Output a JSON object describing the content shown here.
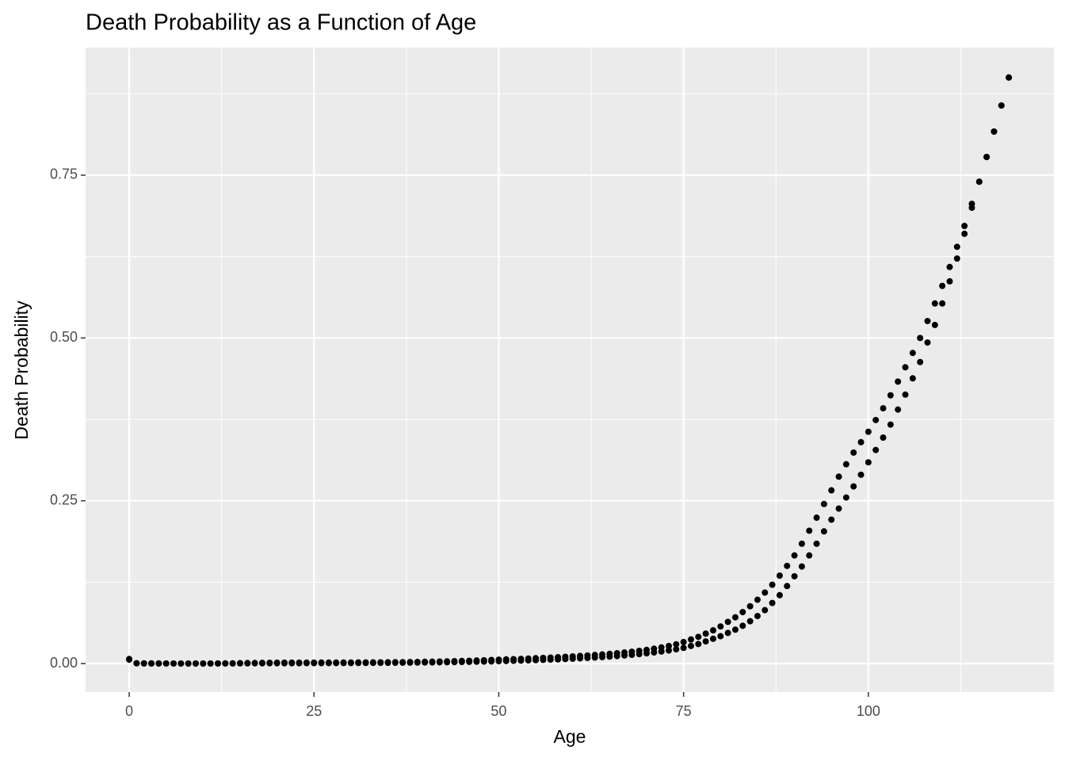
{
  "chart_data": {
    "type": "scatter",
    "title": "Death Probability as a Function of Age",
    "x_label": "Age",
    "y_label": "Death Probability",
    "xlim": [
      -5.9,
      125.1
    ],
    "ylim": [
      -0.0438,
      0.946
    ],
    "xticks": [
      0,
      25,
      50,
      75,
      100
    ],
    "yticks": [
      {
        "value": 0,
        "label": "0.00"
      },
      {
        "value": 0.25,
        "label": "0.25"
      },
      {
        "value": 0.5,
        "label": "0.50"
      },
      {
        "value": 0.75,
        "label": "0.75"
      }
    ],
    "x_minor_ticks": [
      12.5,
      37.5,
      62.5,
      87.5,
      112.5
    ],
    "y_minor_ticks": [
      0.125,
      0.375,
      0.625,
      0.875
    ],
    "grid": true,
    "x": [
      0,
      1,
      2,
      3,
      4,
      5,
      6,
      7,
      8,
      9,
      10,
      11,
      12,
      13,
      14,
      15,
      16,
      17,
      18,
      19,
      20,
      21,
      22,
      23,
      24,
      25,
      26,
      27,
      28,
      29,
      30,
      31,
      32,
      33,
      34,
      35,
      36,
      37,
      38,
      39,
      40,
      41,
      42,
      43,
      44,
      45,
      46,
      47,
      48,
      49,
      50,
      51,
      52,
      53,
      54,
      55,
      56,
      57,
      58,
      59,
      60,
      61,
      62,
      63,
      64,
      65,
      66,
      67,
      68,
      69,
      70,
      71,
      72,
      73,
      74,
      75,
      76,
      77,
      78,
      79,
      80,
      81,
      82,
      83,
      84,
      85,
      86,
      87,
      88,
      89,
      90,
      91,
      92,
      93,
      94,
      95,
      96,
      97,
      98,
      99,
      100,
      101,
      102,
      103,
      104,
      105,
      106,
      107,
      108,
      109,
      110,
      111,
      112,
      113,
      114,
      115,
      116,
      117,
      118,
      119
    ],
    "series": [
      {
        "color": "#000000",
        "values": [
          0.007,
          0.0005,
          0.0003,
          0.0002,
          0.0002,
          0.0002,
          0.0001,
          0.0001,
          0.0001,
          0.0001,
          0.0001,
          0.0001,
          0.0002,
          0.0003,
          0.0004,
          0.0006,
          0.0008,
          0.0009,
          0.0011,
          0.0012,
          0.0013,
          0.0014,
          0.0014,
          0.0014,
          0.0014,
          0.0014,
          0.0015,
          0.0015,
          0.0015,
          0.0016,
          0.0016,
          0.0017,
          0.0017,
          0.0018,
          0.0019,
          0.002,
          0.0021,
          0.0022,
          0.0023,
          0.0025,
          0.0027,
          0.0029,
          0.0031,
          0.0034,
          0.0037,
          0.004,
          0.0043,
          0.0047,
          0.0051,
          0.0055,
          0.006,
          0.0064,
          0.0068,
          0.0072,
          0.0077,
          0.0082,
          0.0087,
          0.0092,
          0.0098,
          0.0104,
          0.011,
          0.0117,
          0.0124,
          0.0132,
          0.014,
          0.0149,
          0.0159,
          0.017,
          0.0182,
          0.0195,
          0.021,
          0.0228,
          0.0248,
          0.027,
          0.0296,
          0.033,
          0.037,
          0.041,
          0.046,
          0.051,
          0.057,
          0.064,
          0.071,
          0.079,
          0.088,
          0.098,
          0.109,
          0.121,
          0.135,
          0.15,
          0.166,
          0.184,
          0.204,
          0.224,
          0.245,
          0.266,
          0.287,
          0.306,
          0.324,
          0.34,
          0.356,
          0.374,
          0.392,
          0.412,
          0.433,
          0.455,
          0.477,
          0.5,
          0.526,
          0.553,
          0.58,
          0.609,
          0.64,
          0.672,
          0.706,
          0.74,
          0.778,
          0.817,
          0.857,
          0.9
        ]
      },
      {
        "color": "#000000",
        "values": [
          0.006,
          0.0004,
          0.0002,
          0.0002,
          0.0001,
          0.0001,
          0.0001,
          0.0001,
          0.0001,
          0.0001,
          0.0001,
          0.0001,
          0.0001,
          0.0002,
          0.0002,
          0.0003,
          0.0003,
          0.0004,
          0.0004,
          0.0005,
          0.0005,
          0.0005,
          0.0005,
          0.0005,
          0.0006,
          0.0006,
          0.0006,
          0.0007,
          0.0007,
          0.0008,
          0.0008,
          0.0009,
          0.0009,
          0.001,
          0.001,
          0.0011,
          0.0012,
          0.0013,
          0.0014,
          0.0015,
          0.0016,
          0.0017,
          0.0019,
          0.002,
          0.0022,
          0.0024,
          0.0026,
          0.0028,
          0.003,
          0.0033,
          0.0036,
          0.0039,
          0.0042,
          0.0045,
          0.0048,
          0.0052,
          0.0056,
          0.006,
          0.0064,
          0.0069,
          0.0074,
          0.008,
          0.0086,
          0.0092,
          0.0099,
          0.0107,
          0.0115,
          0.0124,
          0.0134,
          0.0145,
          0.0157,
          0.017,
          0.0185,
          0.0201,
          0.0219,
          0.024,
          0.027,
          0.03,
          0.034,
          0.038,
          0.042,
          0.047,
          0.052,
          0.058,
          0.065,
          0.073,
          0.082,
          0.093,
          0.105,
          0.119,
          0.134,
          0.149,
          0.166,
          0.184,
          0.203,
          0.221,
          0.238,
          0.255,
          0.272,
          0.29,
          0.309,
          0.328,
          0.347,
          0.367,
          0.39,
          0.413,
          0.438,
          0.463,
          0.493,
          0.52,
          0.553,
          0.587,
          0.622,
          0.66,
          0.7,
          0.74,
          0.778,
          0.817,
          0.857,
          0.9
        ]
      }
    ]
  }
}
